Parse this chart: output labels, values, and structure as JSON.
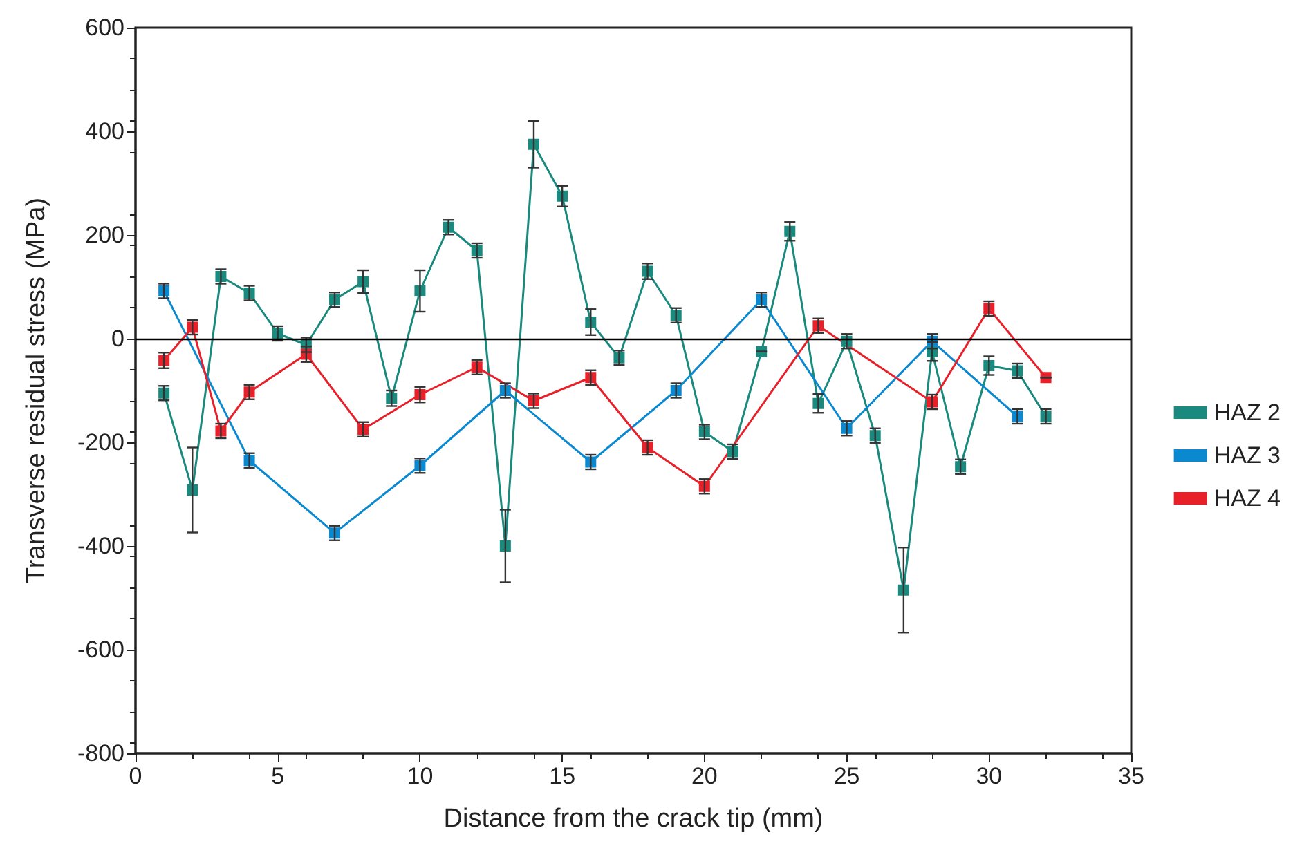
{
  "chart_data": {
    "type": "line",
    "xlabel": "Distance from the crack tip (mm)",
    "ylabel": "Transverse residual stress (MPa)",
    "xlim": [
      0,
      35
    ],
    "xticks": [
      0,
      5,
      10,
      15,
      20,
      25,
      30,
      35
    ],
    "ylim": [
      -800,
      600
    ],
    "yticks": [
      -800,
      -600,
      -400,
      -200,
      0,
      200,
      400,
      600
    ],
    "grid": false,
    "legend": "right",
    "marker": "square",
    "line_style": "solid",
    "ref_lines": [
      {
        "axis": "y",
        "value": 0,
        "color": "#000000"
      }
    ],
    "series": [
      {
        "name": "HAZ 2",
        "color": "#1a8a7e",
        "x": [
          1,
          2,
          3,
          4,
          5,
          6,
          7,
          8,
          9,
          10,
          11,
          12,
          13,
          14,
          15,
          16,
          17,
          18,
          19,
          20,
          21,
          22,
          23,
          24,
          25,
          26,
          27,
          28,
          29,
          30,
          31,
          32
        ],
        "values": [
          -105,
          -292,
          120,
          88,
          10,
          -12,
          75,
          110,
          -115,
          92,
          215,
          170,
          -400,
          375,
          275,
          32,
          -37,
          130,
          45,
          -180,
          -218,
          -25,
          207,
          -125,
          -5,
          -187,
          -485,
          -25,
          -247,
          -52,
          -62,
          -150
        ],
        "errors": [
          14,
          82,
          14,
          14,
          14,
          14,
          14,
          22,
          15,
          40,
          14,
          14,
          70,
          45,
          20,
          25,
          14,
          15,
          14,
          14,
          14,
          null,
          18,
          18,
          14,
          14,
          82,
          18,
          14,
          18,
          14,
          14
        ]
      },
      {
        "name": "HAZ 3",
        "color": "#0a88d0",
        "x": [
          1,
          4,
          7,
          10,
          13,
          16,
          19,
          22,
          25,
          28,
          31
        ],
        "values": [
          92,
          -235,
          -375,
          -245,
          -100,
          -238,
          -100,
          75,
          -173,
          -5,
          -150
        ],
        "errors": [
          14,
          14,
          14,
          14,
          14,
          14,
          14,
          14,
          14,
          14,
          14
        ]
      },
      {
        "name": "HAZ 4",
        "color": "#e8202a",
        "x": [
          1,
          2,
          3,
          4,
          6,
          8,
          10,
          12,
          14,
          16,
          18,
          20,
          24,
          28,
          30,
          32
        ],
        "values": [
          -42,
          22,
          -178,
          -103,
          -30,
          -175,
          -108,
          -55,
          -120,
          -75,
          -210,
          -285,
          25,
          -122,
          58,
          -75
        ],
        "errors": [
          15,
          14,
          14,
          14,
          15,
          14,
          15,
          14,
          14,
          14,
          14,
          14,
          14,
          14,
          14,
          null
        ]
      }
    ]
  }
}
